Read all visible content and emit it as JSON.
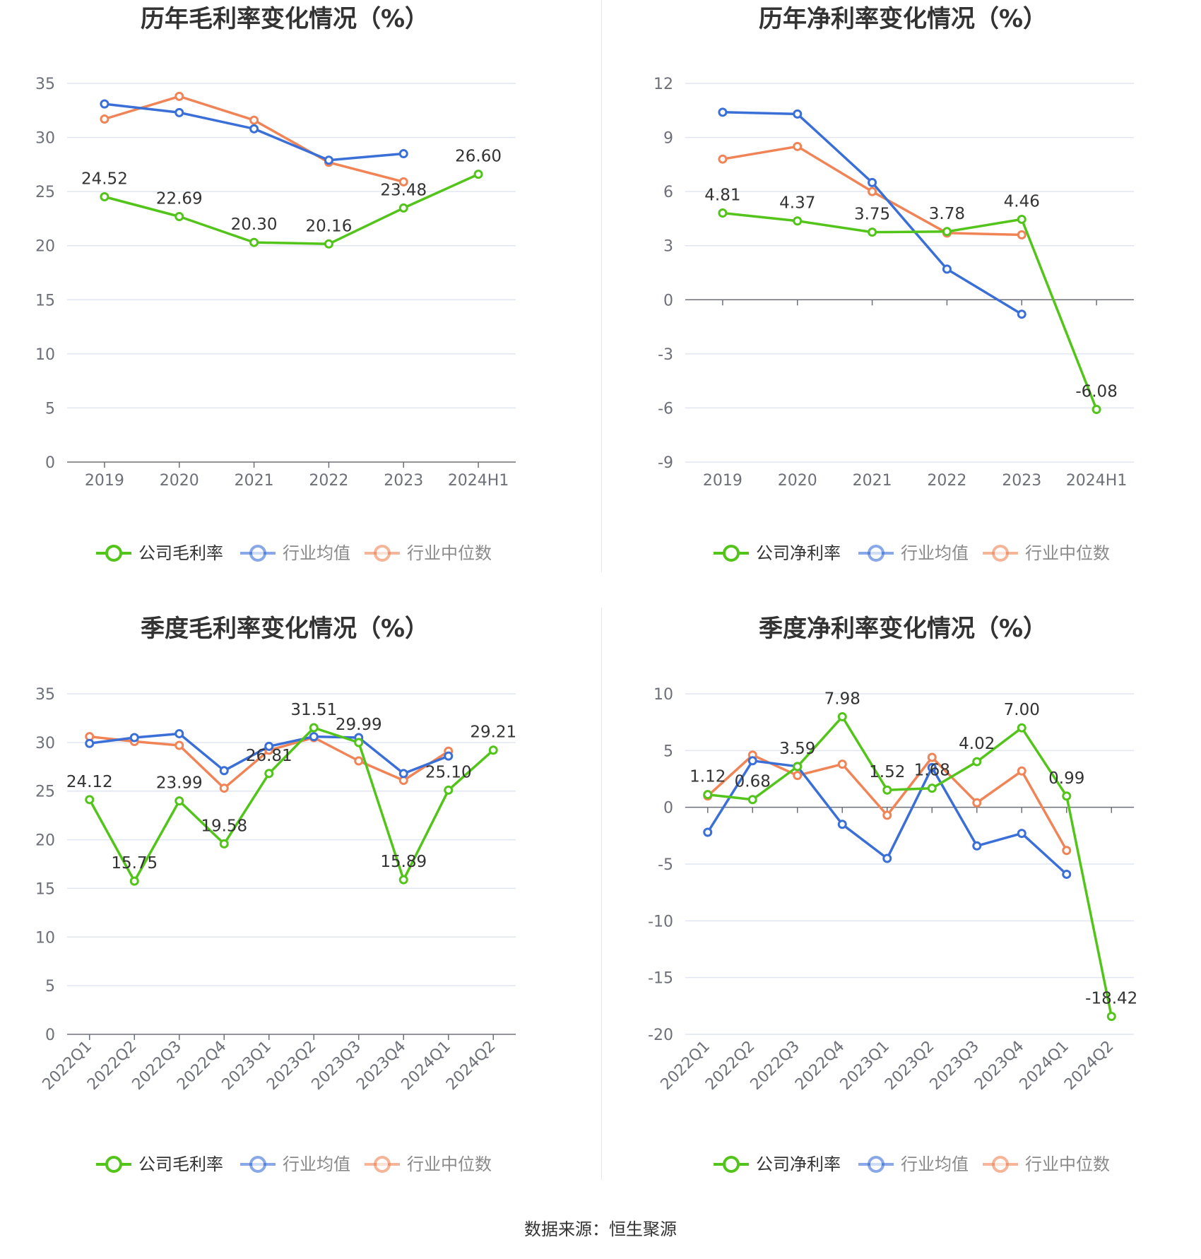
{
  "colors": {
    "company": "#52c41a",
    "avg": "#3a6fd8",
    "median": "#f08456"
  },
  "source": "数据来源：恒生聚源",
  "chart_data": [
    {
      "type": "line",
      "title": "历年毛利率变化情况（%）",
      "categories": [
        "2019",
        "2020",
        "2021",
        "2022",
        "2023",
        "2024H1"
      ],
      "ylim": [
        0,
        35
      ],
      "yticks": [
        0,
        5,
        10,
        15,
        20,
        25,
        30,
        35
      ],
      "legend_position": "bottom",
      "grid": true,
      "series": [
        {
          "name": "公司毛利率",
          "values": [
            24.52,
            22.69,
            20.3,
            20.16,
            23.48,
            26.6
          ],
          "labels": [
            "24.52",
            "22.69",
            "20.30",
            "20.16",
            "23.48",
            "26.60"
          ]
        },
        {
          "name": "行业均值",
          "values": [
            33.1,
            32.3,
            30.8,
            27.9,
            28.5,
            null
          ]
        },
        {
          "name": "行业中位数",
          "values": [
            31.7,
            33.8,
            31.6,
            27.7,
            25.9,
            null
          ]
        }
      ]
    },
    {
      "type": "line",
      "title": "历年净利率变化情况（%）",
      "categories": [
        "2019",
        "2020",
        "2021",
        "2022",
        "2023",
        "2024H1"
      ],
      "ylim": [
        -9,
        12
      ],
      "yticks": [
        -9,
        -6,
        -3,
        0,
        3,
        6,
        9,
        12
      ],
      "legend_position": "bottom",
      "grid": true,
      "series": [
        {
          "name": "公司净利率",
          "values": [
            4.81,
            4.37,
            3.75,
            3.78,
            4.46,
            -6.08
          ],
          "labels": [
            "4.81",
            "4.37",
            "3.75",
            "3.78",
            "4.46",
            "-6.08"
          ]
        },
        {
          "name": "行业均值",
          "values": [
            10.4,
            10.3,
            6.5,
            1.7,
            -0.8,
            null
          ]
        },
        {
          "name": "行业中位数",
          "values": [
            7.8,
            8.5,
            6.0,
            3.7,
            3.6,
            null
          ]
        }
      ]
    },
    {
      "type": "line",
      "title": "季度毛利率变化情况（%）",
      "categories": [
        "2022Q1",
        "2022Q2",
        "2022Q3",
        "2022Q4",
        "2023Q1",
        "2023Q2",
        "2023Q3",
        "2023Q4",
        "2024Q1",
        "2024Q2"
      ],
      "ylim": [
        0,
        35
      ],
      "yticks": [
        0,
        5,
        10,
        15,
        20,
        25,
        30,
        35
      ],
      "legend_position": "bottom",
      "grid": true,
      "series": [
        {
          "name": "公司毛利率",
          "values": [
            24.12,
            15.75,
            23.99,
            19.58,
            26.81,
            31.51,
            29.99,
            15.89,
            25.1,
            29.21
          ],
          "labels": [
            "24.12",
            "15.75",
            "23.99",
            "19.58",
            "26.81",
            "31.51",
            "29.99",
            "15.89",
            "25.10",
            "29.21"
          ]
        },
        {
          "name": "行业均值",
          "values": [
            29.9,
            30.5,
            30.9,
            27.1,
            29.6,
            30.6,
            30.5,
            26.8,
            28.6,
            null
          ]
        },
        {
          "name": "行业中位数",
          "values": [
            30.6,
            30.1,
            29.7,
            25.3,
            29.2,
            30.5,
            28.1,
            26.1,
            29.1,
            null
          ]
        }
      ]
    },
    {
      "type": "line",
      "title": "季度净利率变化情况（%）",
      "categories": [
        "2022Q1",
        "2022Q2",
        "2022Q3",
        "2022Q4",
        "2023Q1",
        "2023Q2",
        "2023Q3",
        "2023Q4",
        "2024Q1",
        "2024Q2"
      ],
      "ylim": [
        -20,
        10
      ],
      "yticks": [
        -20,
        -15,
        -10,
        -5,
        0,
        5,
        10
      ],
      "legend_position": "bottom",
      "grid": true,
      "series": [
        {
          "name": "公司净利率",
          "values": [
            1.12,
            0.68,
            3.59,
            7.98,
            1.52,
            1.68,
            4.02,
            7.0,
            0.99,
            -18.42
          ],
          "labels": [
            "1.12",
            "0.68",
            "3.59",
            "7.98",
            "1.52",
            "1.68",
            "4.02",
            "7.00",
            "0.99",
            "-18.42"
          ]
        },
        {
          "name": "行业均值",
          "values": [
            -2.2,
            4.1,
            3.6,
            -1.5,
            -4.5,
            3.5,
            -3.4,
            -2.3,
            -5.9,
            null
          ]
        },
        {
          "name": "行业中位数",
          "values": [
            1.0,
            4.6,
            2.8,
            3.8,
            -0.7,
            4.4,
            0.4,
            3.2,
            -3.8,
            null
          ]
        }
      ]
    }
  ]
}
